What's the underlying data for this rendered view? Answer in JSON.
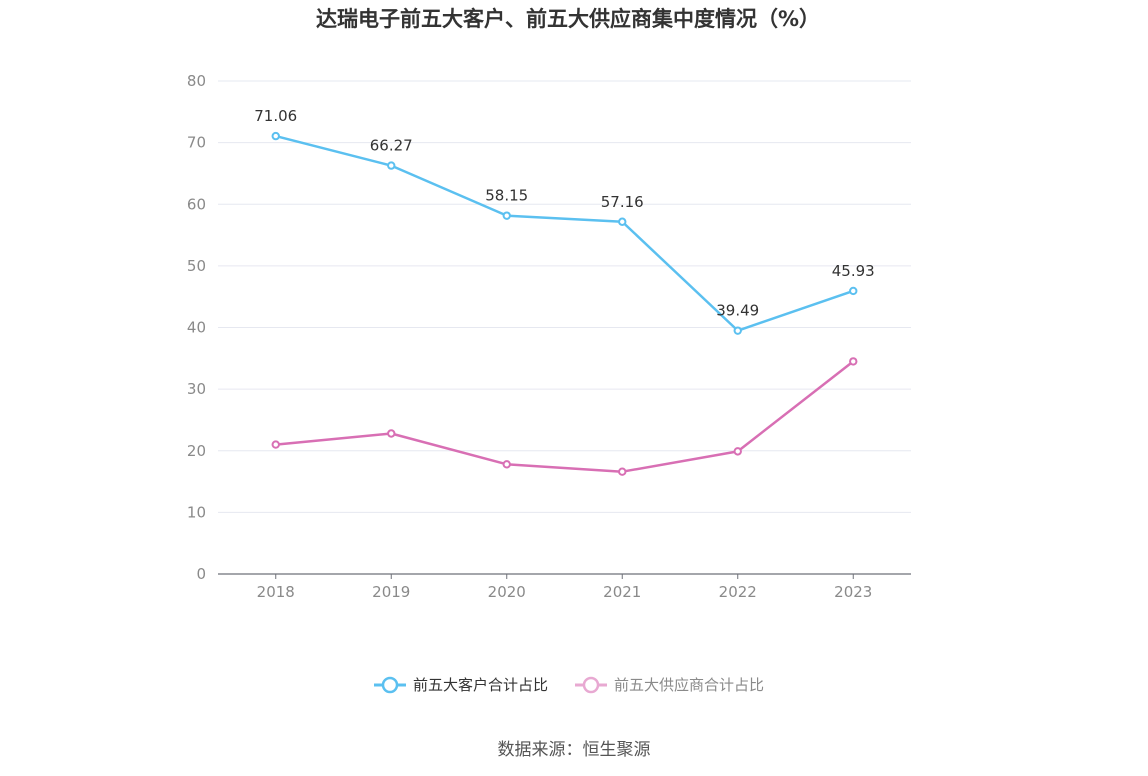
{
  "chart_data": {
    "type": "line",
    "title": "达瑞电子前五大客户、前五大供应商集中度情况（%）",
    "categories": [
      "2018",
      "2019",
      "2020",
      "2021",
      "2022",
      "2023"
    ],
    "ylim": [
      0,
      80
    ],
    "yticks": [
      0,
      10,
      20,
      30,
      40,
      50,
      60,
      70,
      80
    ],
    "grid": true,
    "legend_position": "bottom",
    "series": [
      {
        "name": "前五大客户合计占比",
        "color": "#5bc0f0",
        "values": [
          71.06,
          66.27,
          58.15,
          57.16,
          39.49,
          45.93
        ],
        "labels": [
          "71.06",
          "66.27",
          "58.15",
          "57.16",
          "39.49",
          "45.93"
        ]
      },
      {
        "name": "前五大供应商合计占比",
        "color": "#d86fb4",
        "legend_color": "#e8a9d2",
        "values": [
          21.0,
          22.8,
          17.8,
          16.6,
          19.9,
          34.5
        ]
      }
    ]
  },
  "source": "数据来源：恒生聚源"
}
